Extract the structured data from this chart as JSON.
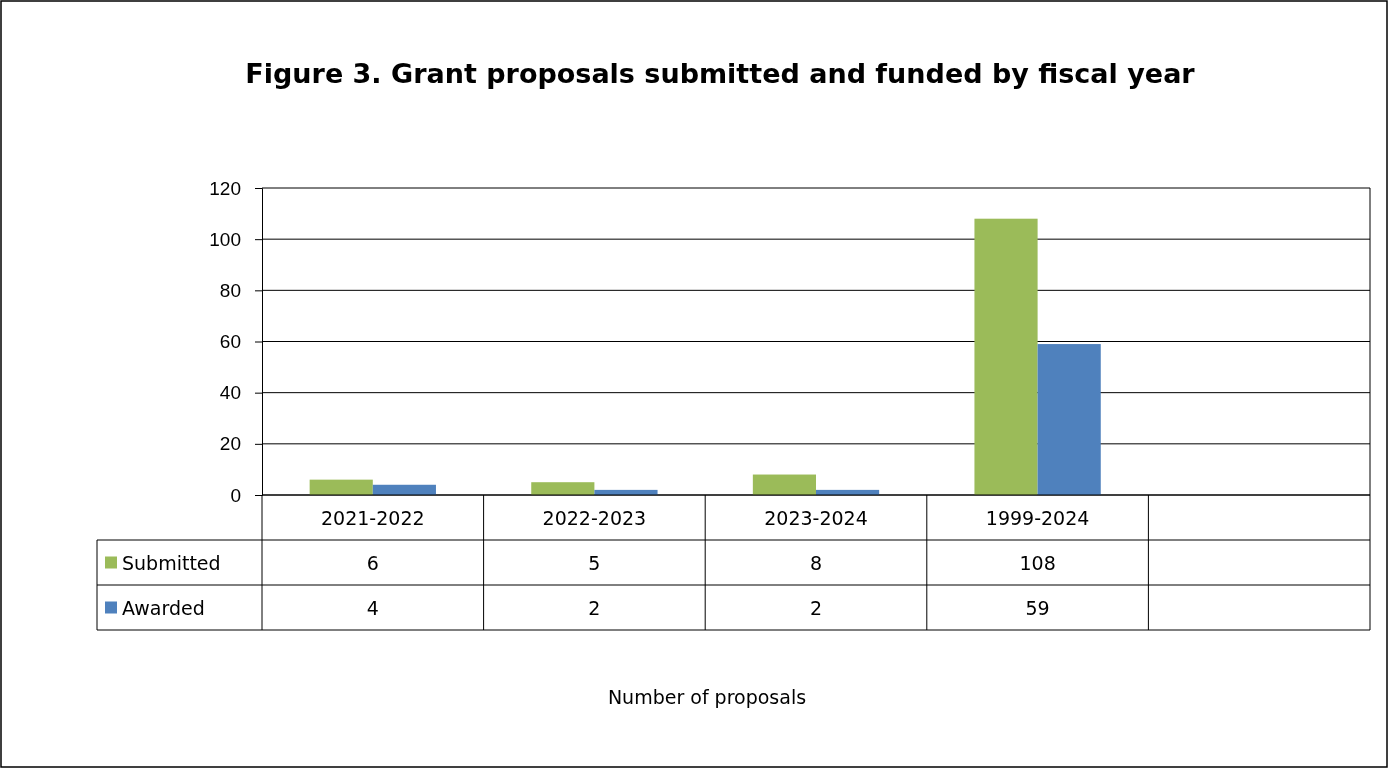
{
  "chart_data": {
    "type": "bar",
    "title": "Figure 3. Grant proposals submitted and funded by fiscal year",
    "annotations": [
      "Number of proposals"
    ],
    "categories": [
      "2021-2022",
      "2022-2023",
      "2023-2024",
      "1999-2024",
      null
    ],
    "series": [
      {
        "name": "Submitted",
        "color": "#9bbb59",
        "values": [
          6,
          5,
          8,
          108,
          null
        ]
      },
      {
        "name": "Awarded",
        "color": "#4f81bd",
        "values": [
          4,
          2,
          2,
          59,
          null
        ]
      }
    ],
    "ylim": [
      0,
      120
    ],
    "yticks": [
      0,
      20,
      40,
      60,
      80,
      100,
      120
    ],
    "grid": "y",
    "legend": "bottom left",
    "data_labels": true
  }
}
